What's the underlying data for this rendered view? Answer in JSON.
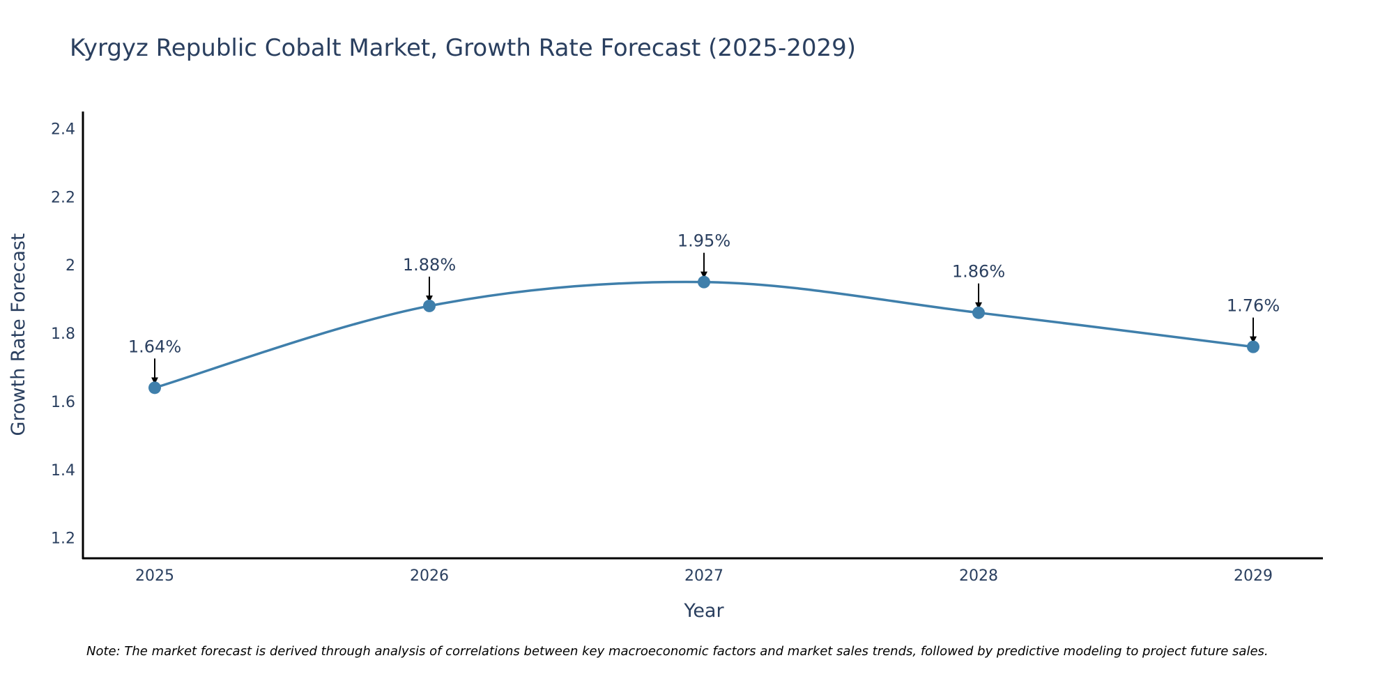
{
  "chart_data": {
    "type": "line",
    "title": "Kyrgyz Republic Cobalt Market, Growth Rate Forecast (2025-2029)",
    "xlabel": "Year",
    "ylabel": "Growth Rate Forecast",
    "categories": [
      "2025",
      "2026",
      "2027",
      "2028",
      "2029"
    ],
    "series": [
      {
        "name": "Growth Rate Forecast",
        "values": [
          1.64,
          1.88,
          1.95,
          1.86,
          1.76
        ],
        "labels": [
          "1.64%",
          "1.88%",
          "1.95%",
          "1.86%",
          "1.76%"
        ]
      }
    ],
    "ylim": [
      1.14,
      2.45
    ],
    "yticks": [
      1.2,
      1.4,
      1.6,
      1.8,
      2,
      2.2,
      2.4
    ],
    "ytick_labels": [
      "1.2",
      "1.4",
      "1.6",
      "1.8",
      "2",
      "2.2",
      "2.4"
    ],
    "grid": false,
    "line_color": "#3f7fab",
    "marker_color": "#3f7fab",
    "arrow_color": "#000000",
    "note": "Note: The market forecast is derived through analysis of correlations between key macroeconomic factors and market sales trends, followed by predictive modeling to project future sales."
  }
}
